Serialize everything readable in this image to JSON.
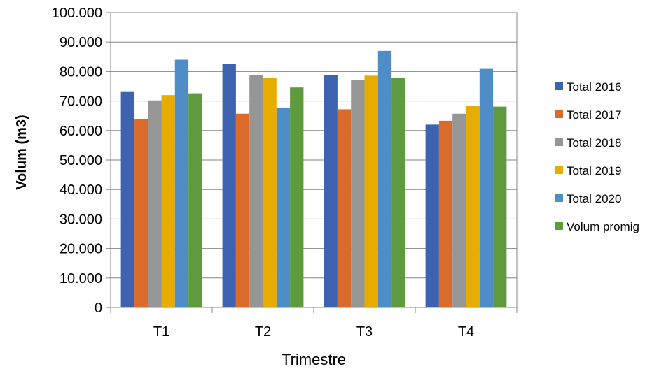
{
  "chart_data": {
    "type": "bar",
    "categories": [
      "T1",
      "T2",
      "T3",
      "T4"
    ],
    "series": [
      {
        "name": "Total 2016",
        "color": "#3d63b0",
        "values": [
          73300,
          82700,
          78800,
          62000
        ]
      },
      {
        "name": "Total 2017",
        "color": "#db6b2b",
        "values": [
          63800,
          65700,
          67200,
          63300
        ]
      },
      {
        "name": "Total 2018",
        "color": "#969696",
        "values": [
          70200,
          78900,
          77200,
          65700
        ]
      },
      {
        "name": "Total 2019",
        "color": "#e8ac00",
        "values": [
          72000,
          77900,
          78600,
          68400
        ]
      },
      {
        "name": "Total 2020",
        "color": "#4f8dc6",
        "values": [
          84000,
          67800,
          87000,
          80900
        ]
      },
      {
        "name": "Volum promig",
        "color": "#5f9b3e",
        "values": [
          72600,
          74600,
          77800,
          68100
        ]
      }
    ],
    "xlabel": "Trimestre",
    "ylabel": "Volum (m3)",
    "ylim": [
      0,
      100000
    ],
    "yticks": [
      "0",
      "10.000",
      "20.000",
      "30.000",
      "40.000",
      "50.000",
      "60.000",
      "70.000",
      "80.000",
      "90.000",
      "100.000"
    ],
    "grid": true,
    "legend_position": "right"
  }
}
